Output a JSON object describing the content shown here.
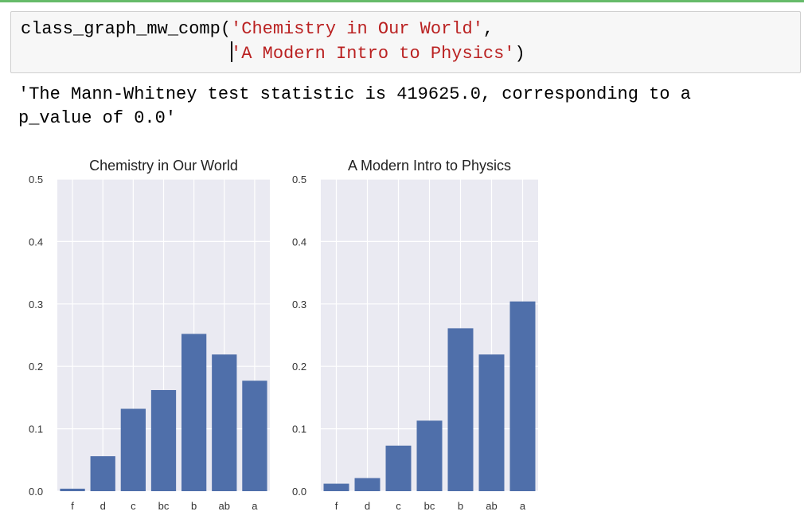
{
  "code": {
    "line1_func": "class_graph_mw_comp(",
    "line1_arg": "'Chemistry in Our World'",
    "line1_tail": ",",
    "line2_arg": "'A Modern Intro to Physics'",
    "line2_tail": ")"
  },
  "output": {
    "line1": "'The Mann-Whitney test statistic is 419625.0, corresponding to a",
    "line2": "p_value of 0.0'"
  },
  "colors": {
    "bar": "#4f6faa",
    "axes_bg": "#eaeaf2",
    "code_string": "#ba2121",
    "cell_rule": "#66bb6a"
  },
  "chart_data": [
    {
      "type": "bar",
      "title": "Chemistry in Our World",
      "categories": [
        "f",
        "d",
        "c",
        "bc",
        "b",
        "ab",
        "a"
      ],
      "values": [
        0.004,
        0.056,
        0.132,
        0.162,
        0.252,
        0.219,
        0.177
      ],
      "ylim": [
        0,
        0.5
      ],
      "yticks": [
        "0.0",
        "0.1",
        "0.2",
        "0.3",
        "0.4",
        "0.5"
      ],
      "xlabel": "",
      "ylabel": "",
      "grid": true
    },
    {
      "type": "bar",
      "title": "A Modern Intro to Physics",
      "categories": [
        "f",
        "d",
        "c",
        "bc",
        "b",
        "ab",
        "a"
      ],
      "values": [
        0.012,
        0.021,
        0.073,
        0.113,
        0.261,
        0.219,
        0.304
      ],
      "ylim": [
        0,
        0.5
      ],
      "yticks": [
        "0.0",
        "0.1",
        "0.2",
        "0.3",
        "0.4",
        "0.5"
      ],
      "xlabel": "",
      "ylabel": "",
      "grid": true
    }
  ]
}
